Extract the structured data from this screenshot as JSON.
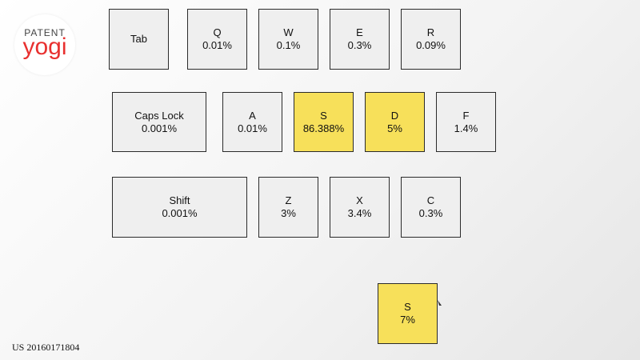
{
  "logo": {
    "top": "PATENT",
    "bottom": "yogi"
  },
  "keys": [
    {
      "label": "Tab",
      "value": "",
      "highlight": false
    },
    {
      "label": "Q",
      "value": "0.01%",
      "highlight": false
    },
    {
      "label": "W",
      "value": "0.1%",
      "highlight": false
    },
    {
      "label": "E",
      "value": "0.3%",
      "highlight": false
    },
    {
      "label": "R",
      "value": "0.09%",
      "highlight": false
    },
    {
      "label": "Caps Lock",
      "value": "0.001%",
      "highlight": false
    },
    {
      "label": "A",
      "value": "0.01%",
      "highlight": false
    },
    {
      "label": "S",
      "value": "86.388%",
      "highlight": true
    },
    {
      "label": "D",
      "value": "5%",
      "highlight": true
    },
    {
      "label": "F",
      "value": "1.4%",
      "highlight": false
    },
    {
      "label": "Shift",
      "value": "0.001%",
      "highlight": false
    },
    {
      "label": "Z",
      "value": "3%",
      "highlight": false
    },
    {
      "label": "X",
      "value": "3.4%",
      "highlight": false
    },
    {
      "label": "C",
      "value": "0.3%",
      "highlight": false
    },
    {
      "label": "S",
      "value": "7%",
      "highlight": true
    }
  ],
  "patent_number": "US 20160171804",
  "colors": {
    "highlight": "#f7e05a",
    "key_bg": "#efefef",
    "logo_red": "#e8302f"
  }
}
